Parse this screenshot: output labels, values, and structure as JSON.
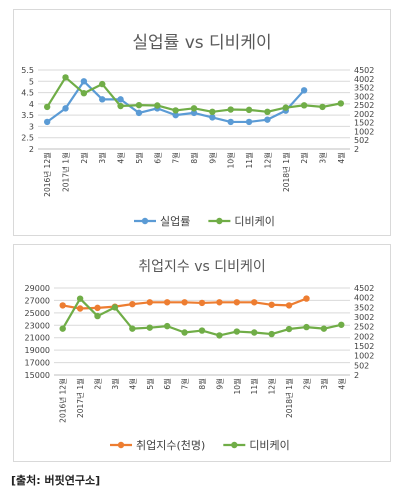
{
  "source_text": "[출처: 버핏연구소]",
  "chart_data": [
    {
      "type": "line",
      "title": "실업률 vs 디비케이",
      "categories": [
        "2016년 12월",
        "2017년 1월",
        "2월",
        "3월",
        "4월",
        "5월",
        "6월",
        "7월",
        "8월",
        "9월",
        "10월",
        "11월",
        "12월",
        "2018년 1월",
        "2월",
        "3월",
        "4월"
      ],
      "y_left": {
        "ylim": [
          2,
          5.5
        ],
        "ticks": [
          "5.5",
          "5",
          "4.5",
          "4",
          "3.5",
          "3",
          "2.5",
          "2"
        ]
      },
      "y_right": {
        "ylim": [
          2,
          4502
        ],
        "ticks": [
          "4502",
          "4002",
          "3502",
          "3002",
          "2502",
          "2002",
          "1502",
          "1002",
          "502",
          "2"
        ]
      },
      "grid": true,
      "legend_position": "bottom",
      "series": [
        {
          "name": "실업률",
          "axis": "left",
          "color": "#5b9bd5",
          "values": [
            3.2,
            3.8,
            5.0,
            4.2,
            4.2,
            3.6,
            3.8,
            3.5,
            3.6,
            3.4,
            3.2,
            3.2,
            3.3,
            3.7,
            4.6,
            null,
            null
          ]
        },
        {
          "name": "디비케이",
          "axis": "right",
          "color": "#70ad47",
          "values": [
            2400,
            4080,
            3180,
            3700,
            2450,
            2500,
            2480,
            2200,
            2320,
            2120,
            2250,
            2230,
            2120,
            2360,
            2490,
            2400,
            2600
          ]
        }
      ]
    },
    {
      "type": "line",
      "title": "취업지수 vs 디비케이",
      "categories": [
        "2016년 12월",
        "2017년 1월",
        "2월",
        "3월",
        "4월",
        "5월",
        "6월",
        "7월",
        "8월",
        "9월",
        "10월",
        "11월",
        "12월",
        "2018년 1월",
        "2월",
        "3월",
        "4월"
      ],
      "y_left": {
        "ylim": [
          15000,
          29000
        ],
        "ticks": [
          "29000",
          "27000",
          "25000",
          "23000",
          "21000",
          "19000",
          "17000",
          "15000"
        ]
      },
      "y_right": {
        "ylim": [
          2,
          4502
        ],
        "ticks": [
          "4502",
          "4002",
          "3502",
          "3002",
          "2502",
          "2002",
          "1502",
          "1002",
          "502",
          "2"
        ]
      },
      "grid": true,
      "legend_position": "bottom",
      "series": [
        {
          "name": "취업지수(천명)",
          "axis": "left",
          "color": "#ed7d31",
          "values": [
            26200,
            25700,
            25800,
            26000,
            26400,
            26700,
            26700,
            26700,
            26600,
            26700,
            26700,
            26700,
            26300,
            26200,
            27300,
            null,
            null
          ]
        },
        {
          "name": "디비케이",
          "axis": "right",
          "color": "#70ad47",
          "values": [
            2400,
            3950,
            3050,
            3500,
            2400,
            2450,
            2530,
            2200,
            2300,
            2050,
            2250,
            2200,
            2120,
            2380,
            2480,
            2400,
            2600
          ]
        }
      ]
    }
  ]
}
